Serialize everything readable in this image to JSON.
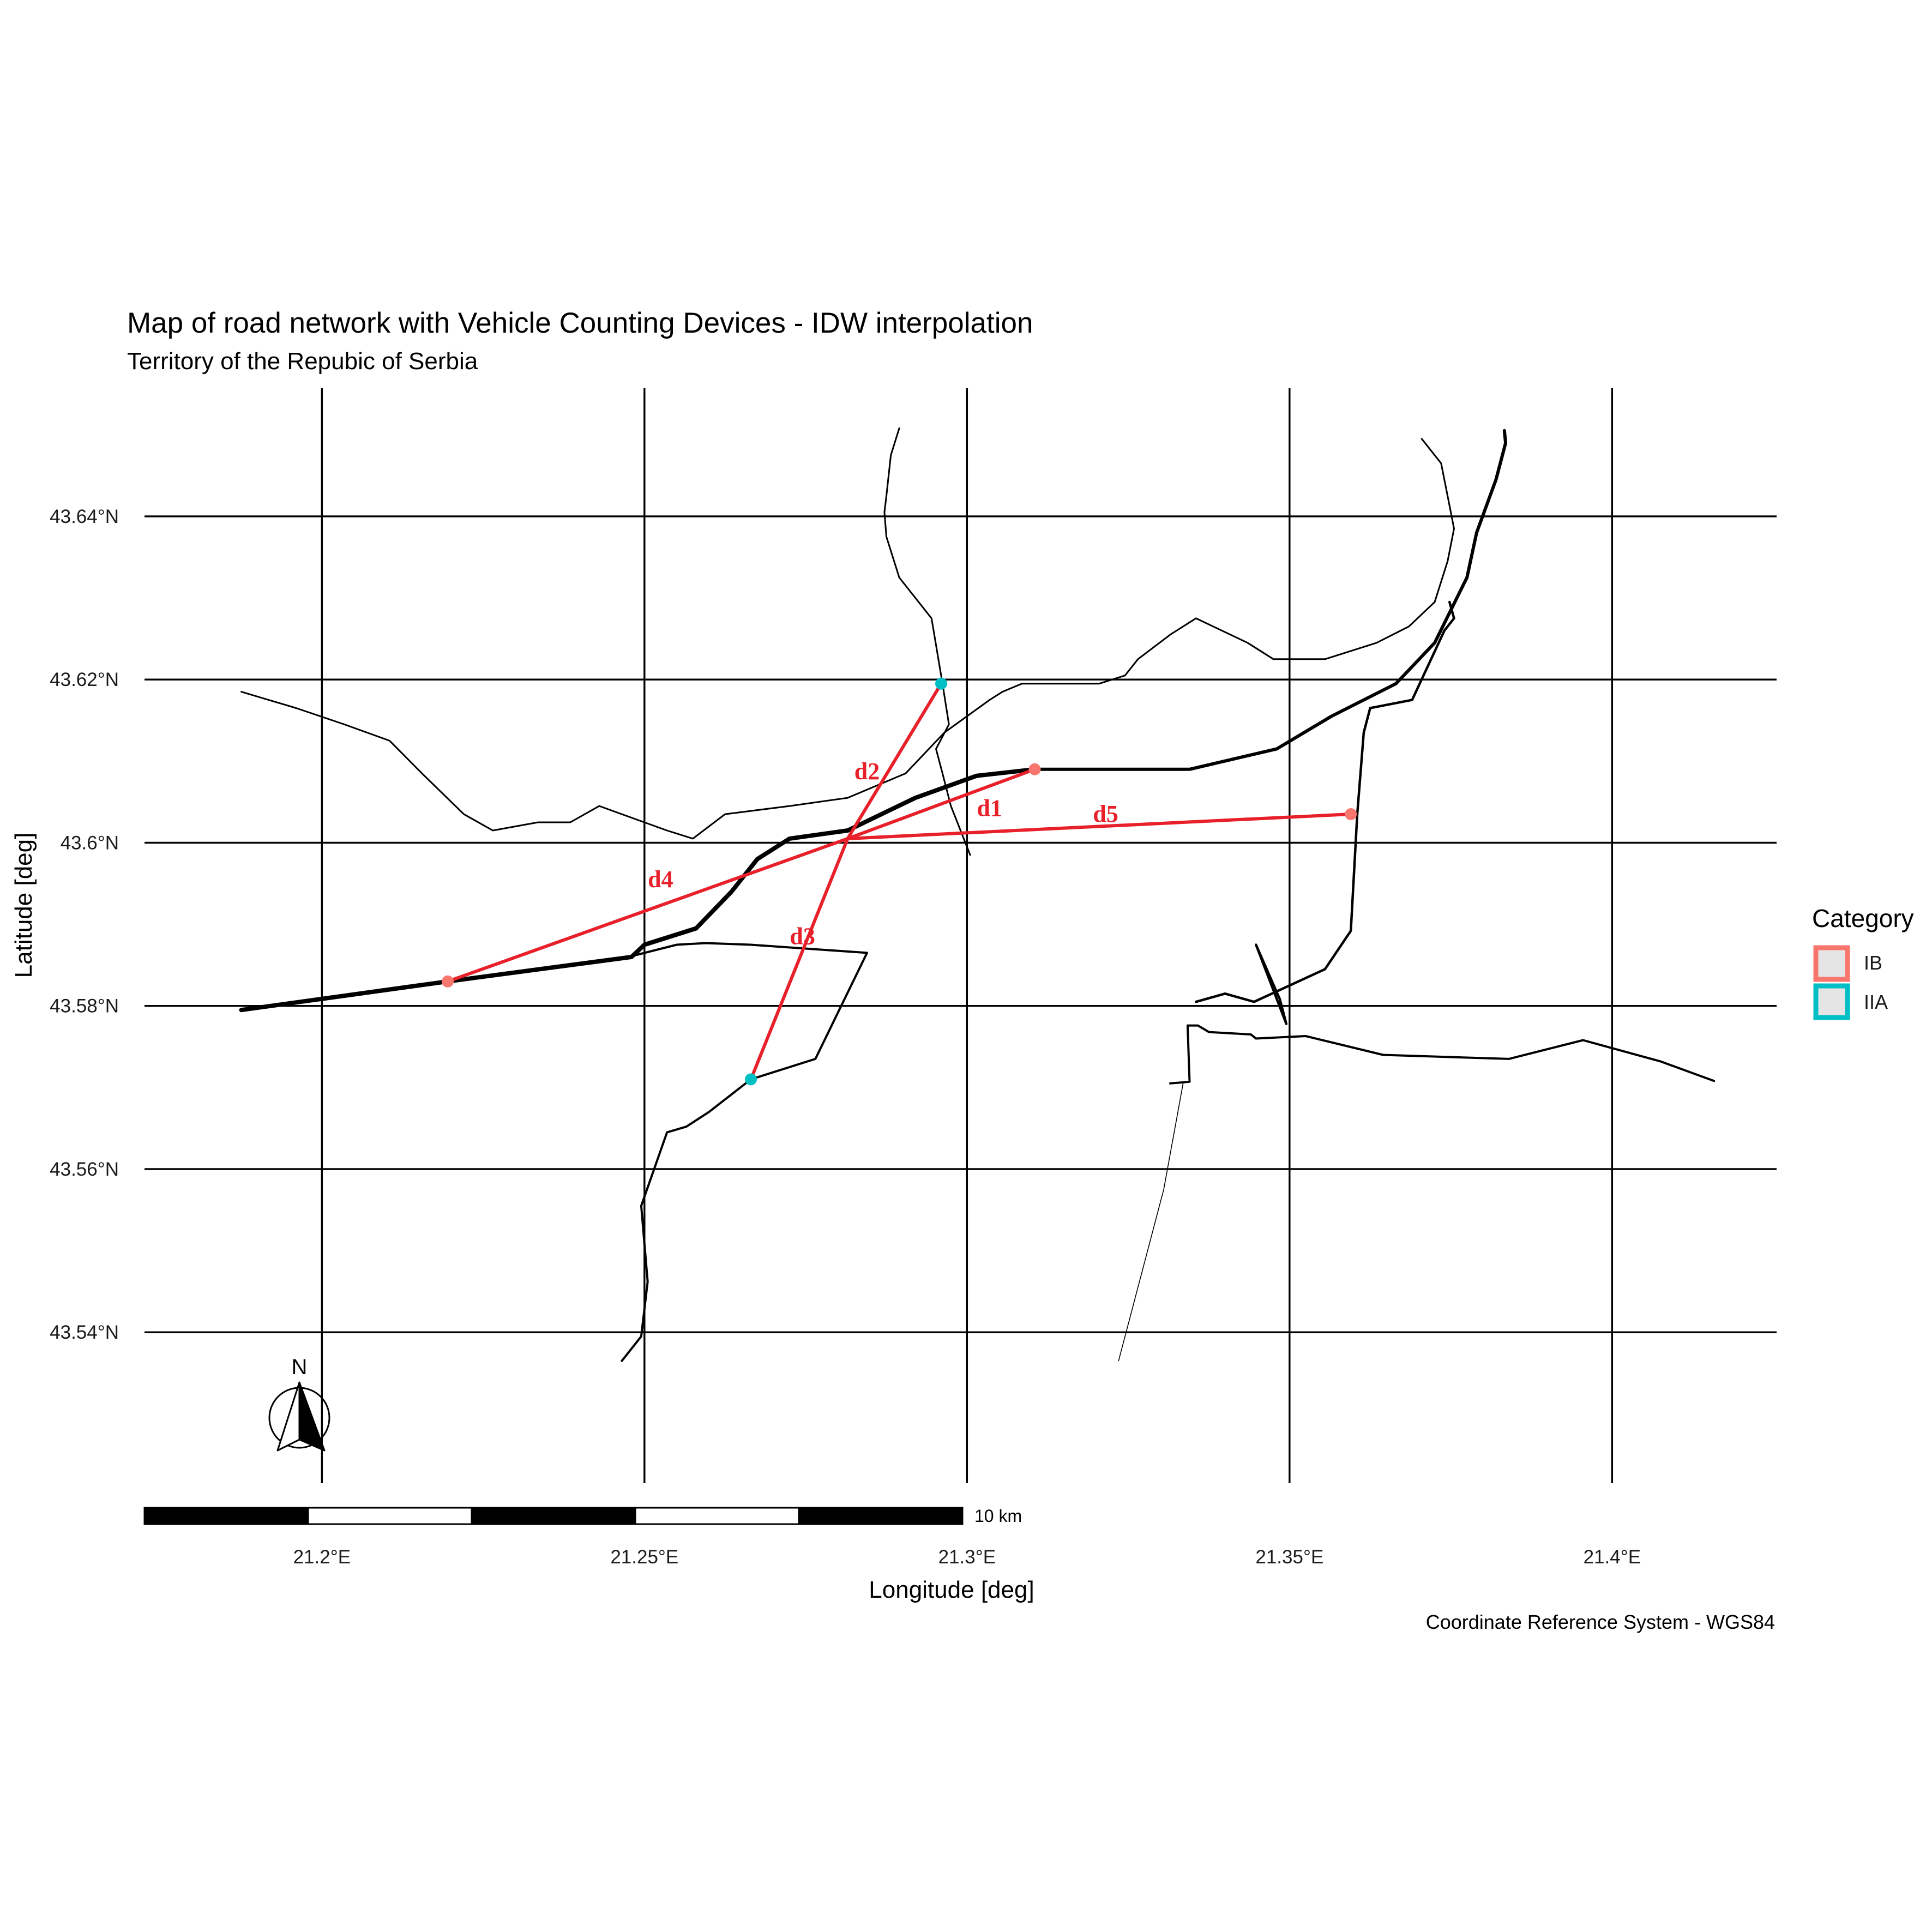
{
  "title": "Map of road network with Vehicle Counting Devices - IDW interpolation",
  "subtitle": "Territory of the Repubic of Serbia",
  "caption": "Coordinate Reference System - WGS84",
  "axes": {
    "x_title": "Longitude [deg]",
    "y_title": "Latitude [deg]",
    "x_ticks": [
      {
        "value": 21.2,
        "label": "21.2°E"
      },
      {
        "value": 21.25,
        "label": "21.25°E"
      },
      {
        "value": 21.3,
        "label": "21.3°E"
      },
      {
        "value": 21.35,
        "label": "21.35°E"
      },
      {
        "value": 21.4,
        "label": "21.4°E"
      }
    ],
    "y_ticks": [
      {
        "value": 43.54,
        "label": "43.54°N"
      },
      {
        "value": 43.56,
        "label": "43.56°N"
      },
      {
        "value": 43.58,
        "label": "43.58°N"
      },
      {
        "value": 43.6,
        "label": "43.6°N"
      },
      {
        "value": 43.62,
        "label": "43.62°N"
      },
      {
        "value": 43.64,
        "label": "43.64°N"
      }
    ],
    "x_range": [
      21.1725,
      21.4255
    ],
    "y_range": [
      43.5215,
      43.6557
    ]
  },
  "legend": {
    "title": "Category",
    "placement": "right",
    "items": [
      {
        "label": "IB",
        "color": "#F8766D"
      },
      {
        "label": "IIA",
        "color": "#00BFC4"
      }
    ]
  },
  "colors": {
    "IB": "#F8766D",
    "IIA": "#00BFC4",
    "distance_line": "#E8202A",
    "grid": "#000000"
  },
  "interpolation_point": {
    "lon": 21.2815,
    "lat": 43.6005
  },
  "devices": [
    {
      "category": "IB",
      "lon": 21.2195,
      "lat": 43.583
    },
    {
      "category": "IIA",
      "lon": 21.2665,
      "lat": 43.571
    },
    {
      "category": "IIA",
      "lon": 21.296,
      "lat": 43.6195
    },
    {
      "category": "IB",
      "lon": 21.3105,
      "lat": 43.609
    },
    {
      "category": "IB",
      "lon": 21.3595,
      "lat": 43.6035
    }
  ],
  "distances": [
    {
      "label": "d1",
      "device": 3,
      "label_lon": 21.3035,
      "label_lat": 43.6042
    },
    {
      "label": "d2",
      "device": 2,
      "label_lon": 21.2845,
      "label_lat": 43.6087
    },
    {
      "label": "d3",
      "device": 1,
      "label_lon": 21.2745,
      "label_lat": 43.5885
    },
    {
      "label": "d4",
      "device": 0,
      "label_lon": 21.2525,
      "label_lat": 43.5955
    },
    {
      "label": "d5",
      "device": 4,
      "label_lon": 21.3215,
      "label_lat": 43.6035
    }
  ],
  "roads": [
    {
      "type": "main",
      "weight": 8,
      "points": [
        [
          21.1875,
          43.5795
        ],
        [
          21.2195,
          43.583
        ],
        [
          21.248,
          43.586
        ],
        [
          21.25,
          43.5875
        ],
        [
          21.258,
          43.5895
        ],
        [
          21.2635,
          43.594
        ],
        [
          21.2675,
          43.598
        ],
        [
          21.2725,
          43.6005
        ],
        [
          21.2815,
          43.6015
        ],
        [
          21.292,
          43.6055
        ],
        [
          21.3015,
          43.6082
        ],
        [
          21.3105,
          43.609
        ]
      ]
    },
    {
      "type": "main",
      "weight": 6,
      "points": [
        [
          21.3105,
          43.609
        ],
        [
          21.3345,
          43.609
        ],
        [
          21.348,
          43.6115
        ],
        [
          21.3565,
          43.6155
        ],
        [
          21.3665,
          43.6195
        ],
        [
          21.3725,
          43.6245
        ],
        [
          21.3775,
          43.6325
        ],
        [
          21.379,
          43.638
        ],
        [
          21.382,
          43.6445
        ],
        [
          21.3835,
          43.649
        ],
        [
          21.3833,
          43.6505
        ]
      ]
    },
    {
      "type": "secondary",
      "weight": 4.5,
      "points": [
        [
          21.3355,
          43.5805
        ],
        [
          21.34,
          43.5815
        ],
        [
          21.3445,
          43.5805
        ],
        [
          21.3555,
          43.5845
        ],
        [
          21.3595,
          43.5892
        ],
        [
          21.3605,
          43.6035
        ],
        [
          21.3615,
          43.6135
        ],
        [
          21.3625,
          43.6165
        ],
        [
          21.369,
          43.6175
        ],
        [
          21.374,
          43.626
        ],
        [
          21.3755,
          43.6275
        ],
        [
          21.3748,
          43.6295
        ]
      ]
    },
    {
      "type": "secondary",
      "weight": 4.5,
      "points": [
        [
          21.3448,
          43.5875
        ],
        [
          21.3485,
          43.5808
        ],
        [
          21.3495,
          43.5778
        ],
        [
          21.3448,
          43.5875
        ]
      ]
    },
    {
      "type": "secondary",
      "weight": 4,
      "points": [
        [
          21.2475,
          43.586
        ],
        [
          21.255,
          43.5875
        ],
        [
          21.2595,
          43.5877
        ],
        [
          21.2665,
          43.5875
        ],
        [
          21.2845,
          43.5865
        ],
        [
          21.2765,
          43.5735
        ],
        [
          21.2665,
          43.571
        ],
        [
          21.26,
          43.567
        ],
        [
          21.2565,
          43.5652
        ],
        [
          21.2535,
          43.5645
        ],
        [
          21.2515,
          43.56
        ],
        [
          21.2495,
          43.5555
        ],
        [
          21.2505,
          43.5462
        ],
        [
          21.2495,
          43.5395
        ],
        [
          21.2465,
          43.5365
        ]
      ]
    },
    {
      "type": "secondary",
      "weight": 4,
      "points": [
        [
          21.3315,
          43.5705
        ],
        [
          21.3345,
          43.5707
        ],
        [
          21.3342,
          43.5776
        ],
        [
          21.3358,
          43.5776
        ],
        [
          21.3375,
          43.5768
        ],
        [
          21.344,
          43.5765
        ],
        [
          21.3448,
          43.576
        ],
        [
          21.3525,
          43.5763
        ],
        [
          21.3645,
          43.574
        ],
        [
          21.384,
          43.5735
        ],
        [
          21.3955,
          43.5758
        ],
        [
          21.4075,
          43.5732
        ],
        [
          21.4158,
          43.5708
        ]
      ]
    },
    {
      "type": "minor",
      "weight": 3,
      "points": [
        [
          21.1875,
          43.6185
        ],
        [
          21.196,
          43.6165
        ],
        [
          21.2035,
          43.6145
        ],
        [
          21.2105,
          43.6125
        ],
        [
          21.2155,
          43.6085
        ],
        [
          21.222,
          43.6035
        ],
        [
          21.2265,
          43.6015
        ],
        [
          21.2335,
          43.6025
        ],
        [
          21.2385,
          43.6025
        ],
        [
          21.243,
          43.6045
        ],
        [
          21.2465,
          43.6035
        ],
        [
          21.2535,
          43.6015
        ],
        [
          21.2575,
          43.6005
        ],
        [
          21.2625,
          43.6035
        ],
        [
          21.2725,
          43.6045
        ],
        [
          21.2815,
          43.6055
        ],
        [
          21.2905,
          43.6085
        ],
        [
          21.2965,
          43.6135
        ],
        [
          21.3035,
          43.6175
        ],
        [
          21.3055,
          43.6185
        ],
        [
          21.3085,
          43.6195
        ],
        [
          21.3205,
          43.6195
        ],
        [
          21.3245,
          43.6205
        ],
        [
          21.3265,
          43.6225
        ],
        [
          21.3315,
          43.6255
        ],
        [
          21.3355,
          43.6275
        ],
        [
          21.3435,
          43.6245
        ],
        [
          21.3475,
          43.6225
        ],
        [
          21.3555,
          43.6225
        ],
        [
          21.3635,
          43.6245
        ],
        [
          21.3685,
          43.6265
        ],
        [
          21.3725,
          43.6295
        ],
        [
          21.3745,
          43.6345
        ],
        [
          21.3755,
          43.6385
        ],
        [
          21.3745,
          43.6425
        ],
        [
          21.3735,
          43.6465
        ],
        [
          21.3705,
          43.6495
        ]
      ]
    },
    {
      "type": "minor",
      "weight": 3,
      "points": [
        [
          21.2895,
          43.6508
        ],
        [
          21.2882,
          43.6475
        ],
        [
          21.2875,
          43.6425
        ],
        [
          21.2872,
          43.6405
        ],
        [
          21.2875,
          43.6375
        ],
        [
          21.2895,
          43.6325
        ],
        [
          21.2945,
          43.6275
        ],
        [
          21.2962,
          43.6195
        ],
        [
          21.2972,
          43.6145
        ],
        [
          21.2952,
          43.6115
        ],
        [
          21.2962,
          43.6085
        ],
        [
          21.2975,
          43.6045
        ],
        [
          21.3005,
          43.5985
        ]
      ]
    },
    {
      "type": "track",
      "weight": 1.6,
      "points": [
        [
          21.3235,
          43.5365
        ],
        [
          21.3305,
          43.5575
        ],
        [
          21.3335,
          43.5705
        ]
      ]
    }
  ]
}
